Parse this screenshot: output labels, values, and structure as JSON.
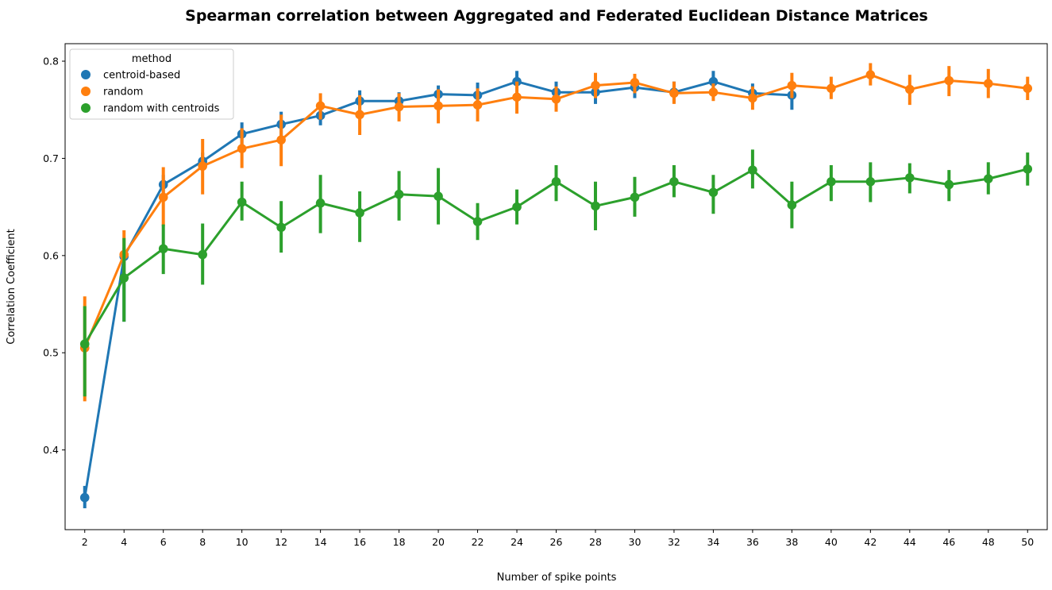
{
  "chart_data": {
    "type": "line",
    "title": "Spearman correlation between Aggregated and Federated Euclidean Distance Matrices",
    "xlabel": "Number of spike points",
    "ylabel": "Correlation Coefficient",
    "ylim": [
      0.318,
      0.818
    ],
    "yticks": [
      0.4,
      0.5,
      0.6,
      0.7,
      0.8
    ],
    "categories": [
      "2",
      "4",
      "6",
      "8",
      "10",
      "12",
      "14",
      "16",
      "18",
      "20",
      "22",
      "24",
      "26",
      "28",
      "30",
      "32",
      "34",
      "36",
      "38",
      "40",
      "42",
      "44",
      "46",
      "48",
      "50"
    ],
    "grid": false,
    "legend": {
      "title": "method",
      "placement": "top-left"
    },
    "series": [
      {
        "name": "centroid-based",
        "color": "#1f77b4",
        "values": [
          0.351,
          0.599,
          0.673,
          0.697,
          0.725,
          0.735,
          0.744,
          0.759,
          0.759,
          0.766,
          0.765,
          0.779,
          0.768,
          0.768,
          0.773,
          0.768,
          0.779,
          0.767,
          0.765,
          null,
          null,
          null,
          null,
          null,
          null
        ],
        "ci_low": [
          0.34,
          0.532,
          0.662,
          0.688,
          0.714,
          0.723,
          0.734,
          0.749,
          0.749,
          0.757,
          0.752,
          0.768,
          0.758,
          0.756,
          0.762,
          0.757,
          0.769,
          0.756,
          0.75,
          null,
          null,
          null,
          null,
          null,
          null
        ],
        "ci_high": [
          0.363,
          0.608,
          0.683,
          0.706,
          0.737,
          0.748,
          0.755,
          0.77,
          0.768,
          0.775,
          0.778,
          0.79,
          0.779,
          0.78,
          0.782,
          0.779,
          0.79,
          0.777,
          0.776,
          null,
          null,
          null,
          null,
          null,
          null
        ]
      },
      {
        "name": "random",
        "color": "#ff7f0e",
        "values": [
          0.505,
          0.601,
          0.66,
          0.692,
          0.71,
          0.719,
          0.754,
          0.745,
          0.753,
          0.754,
          0.755,
          0.763,
          0.761,
          0.775,
          0.778,
          0.767,
          0.768,
          0.762,
          0.775,
          0.772,
          0.786,
          0.771,
          0.78,
          0.777,
          0.772
        ],
        "ci_low": [
          0.45,
          0.575,
          0.63,
          0.663,
          0.69,
          0.692,
          0.74,
          0.724,
          0.738,
          0.736,
          0.738,
          0.746,
          0.748,
          0.762,
          0.767,
          0.756,
          0.759,
          0.75,
          0.762,
          0.761,
          0.775,
          0.755,
          0.764,
          0.762,
          0.76
        ],
        "ci_high": [
          0.558,
          0.626,
          0.691,
          0.72,
          0.731,
          0.745,
          0.767,
          0.765,
          0.767,
          0.771,
          0.772,
          0.779,
          0.774,
          0.788,
          0.787,
          0.779,
          0.777,
          0.774,
          0.788,
          0.784,
          0.798,
          0.786,
          0.795,
          0.792,
          0.784
        ]
      },
      {
        "name": "random with centroids",
        "color": "#2ca02c",
        "values": [
          0.509,
          0.577,
          0.607,
          0.601,
          0.655,
          0.629,
          0.654,
          0.644,
          0.663,
          0.661,
          0.635,
          0.65,
          0.676,
          0.651,
          0.66,
          0.676,
          0.665,
          0.688,
          0.652,
          0.676,
          0.676,
          0.68,
          0.673,
          0.679,
          0.689
        ],
        "ci_low": [
          0.455,
          0.532,
          0.581,
          0.57,
          0.636,
          0.603,
          0.623,
          0.614,
          0.636,
          0.632,
          0.616,
          0.632,
          0.656,
          0.626,
          0.64,
          0.66,
          0.643,
          0.669,
          0.628,
          0.656,
          0.655,
          0.664,
          0.656,
          0.663,
          0.672
        ],
        "ci_high": [
          0.548,
          0.618,
          0.632,
          0.633,
          0.676,
          0.656,
          0.683,
          0.666,
          0.687,
          0.69,
          0.654,
          0.668,
          0.693,
          0.676,
          0.681,
          0.693,
          0.683,
          0.709,
          0.676,
          0.693,
          0.696,
          0.695,
          0.688,
          0.696,
          0.706
        ]
      }
    ]
  }
}
